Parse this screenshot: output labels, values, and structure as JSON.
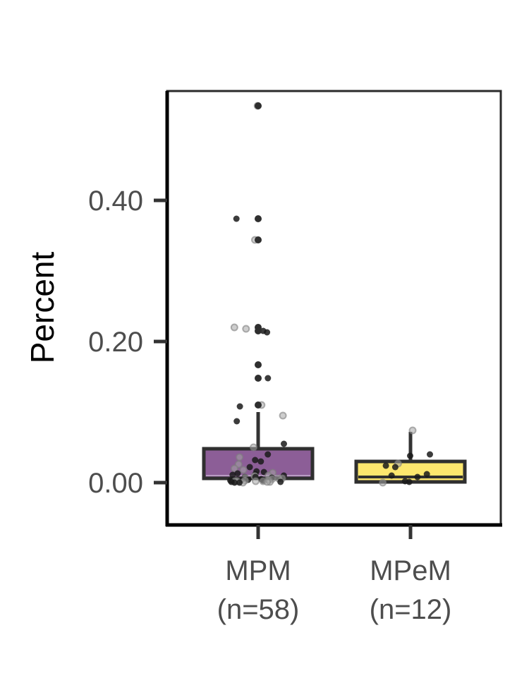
{
  "chart_data": {
    "type": "box",
    "title": "",
    "xlabel": "",
    "ylabel": "Percent",
    "ylim": [
      -0.06,
      0.555
    ],
    "yticks": [
      0.0,
      0.2,
      0.4
    ],
    "ytick_labels": [
      "0.00",
      "0.20",
      "0.40"
    ],
    "categories": [
      {
        "line1": "MPM",
        "line2": "(n=58)"
      },
      {
        "line1": "MPeM",
        "line2": "(n=12)"
      }
    ],
    "boxes": [
      {
        "group": "MPM",
        "color": "#8C5E97",
        "median_color": "#B99BC4",
        "min": 0.0,
        "q1": 0.006,
        "median": 0.01,
        "q3": 0.048,
        "whisker_high": 0.1,
        "outliers": [
          0.534,
          0.374,
          0.344,
          0.22,
          0.215,
          0.167,
          0.148,
          0.11
        ]
      },
      {
        "group": "MPeM",
        "color": "#FDE76E",
        "median_color": "#2f2f2f",
        "min": 0.0,
        "q1": 0.001,
        "median": 0.008,
        "q3": 0.03,
        "whisker_high": 0.072,
        "outliers": []
      }
    ],
    "jitter_points": [
      {
        "group": "MPM",
        "values": [
          0.534,
          0.374,
          0.344,
          0.22,
          0.215,
          0.218,
          0.213,
          0.167,
          0.148,
          0.11,
          0.108,
          0.095,
          0.087,
          0.055,
          0.05,
          0.04,
          0.036,
          0.032,
          0.03,
          0.026,
          0.022,
          0.02,
          0.018,
          0.016,
          0.015,
          0.014,
          0.013,
          0.012,
          0.011,
          0.01,
          0.01,
          0.009,
          0.009,
          0.008,
          0.008,
          0.007,
          0.007,
          0.006,
          0.006,
          0.005,
          0.005,
          0.004,
          0.004,
          0.004,
          0.003,
          0.003,
          0.003,
          0.002,
          0.002,
          0.002,
          0.002,
          0.001,
          0.001,
          0.001,
          0.001,
          0.0,
          0.0,
          0.0
        ]
      },
      {
        "group": "MPeM",
        "values": [
          0.074,
          0.04,
          0.038,
          0.027,
          0.024,
          0.022,
          0.012,
          0.01,
          0.008,
          0.002,
          0.001,
          0.0
        ]
      }
    ]
  }
}
